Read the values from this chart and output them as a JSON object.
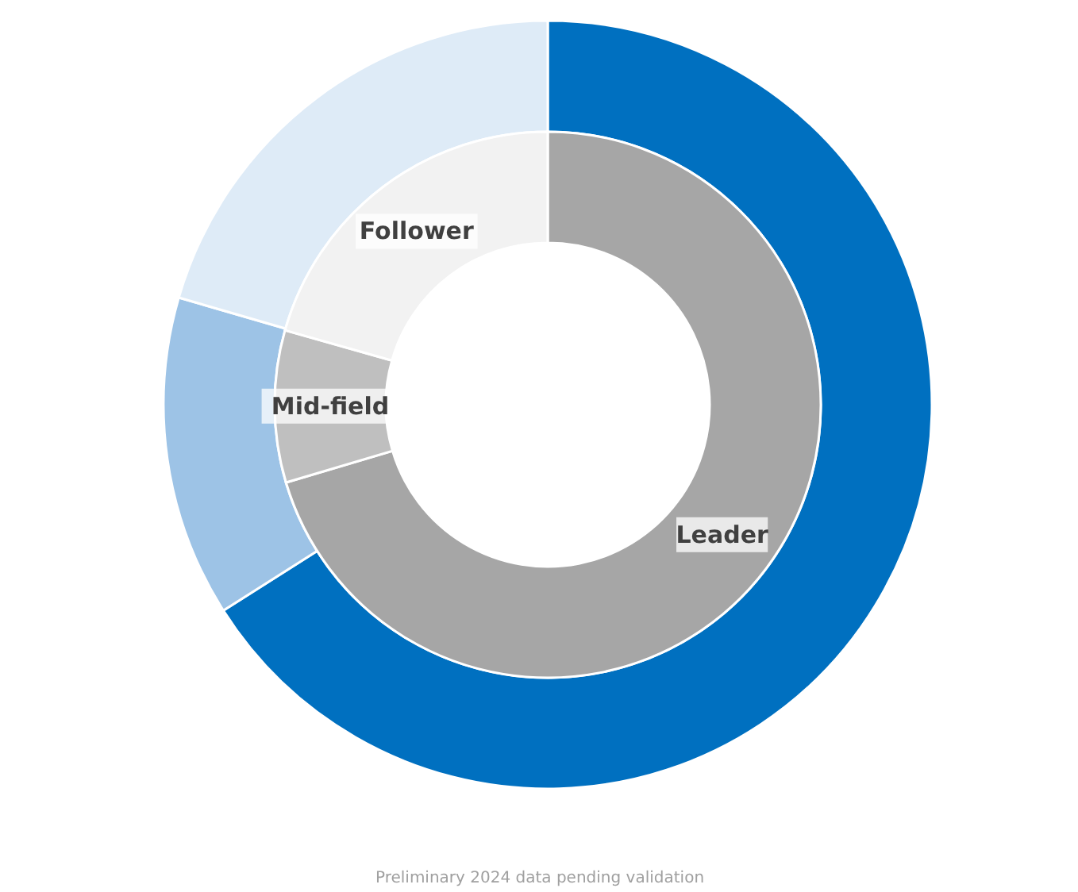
{
  "chart_data": {
    "type": "donut",
    "categories": [
      "Leader",
      "Mid-field",
      "Follower"
    ],
    "series": [
      {
        "values": [
          66,
          13.5,
          20.5
        ],
        "colors": [
          "#0070c0",
          "#9dc3e6",
          "#deebf7"
        ]
      },
      {
        "values": [
          70.4,
          9,
          20.6
        ],
        "colors": [
          "#a6a6a6",
          "#bfbfbf",
          "#f2f2f2"
        ]
      }
    ],
    "annotations": [
      "Preliminary 2024 data pending validation"
    ]
  }
}
